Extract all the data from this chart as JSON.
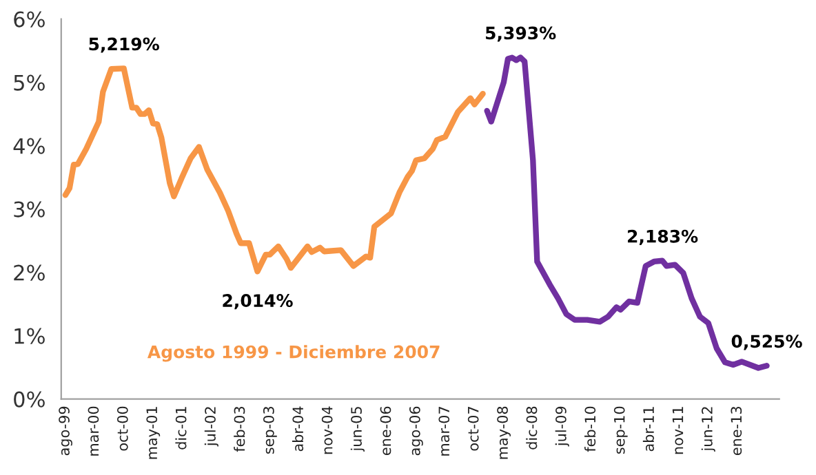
{
  "chart_data": {
    "type": "line",
    "xlim": [
      "1999-07",
      "2013-11"
    ],
    "ylim": [
      0,
      6
    ],
    "yticks": [
      {
        "value": 0,
        "label": "0%"
      },
      {
        "value": 1,
        "label": "1%"
      },
      {
        "value": 2,
        "label": "2%"
      },
      {
        "value": 3,
        "label": "3%"
      },
      {
        "value": 4,
        "label": "4%"
      },
      {
        "value": 5,
        "label": "5%"
      },
      {
        "value": 6,
        "label": "6%"
      }
    ],
    "xticks": [
      {
        "value": "1999-08",
        "label": "ago-99"
      },
      {
        "value": "2000-03",
        "label": "mar-00"
      },
      {
        "value": "2000-10",
        "label": "oct-00"
      },
      {
        "value": "2001-05",
        "label": "may-01"
      },
      {
        "value": "2001-12",
        "label": "dic-01"
      },
      {
        "value": "2002-07",
        "label": "jul-02"
      },
      {
        "value": "2003-02",
        "label": "feb-03"
      },
      {
        "value": "2003-09",
        "label": "sep-03"
      },
      {
        "value": "2004-04",
        "label": "abr-04"
      },
      {
        "value": "2004-11",
        "label": "nov-04"
      },
      {
        "value": "2005-06",
        "label": "jun-05"
      },
      {
        "value": "2006-01",
        "label": "ene-06"
      },
      {
        "value": "2006-08",
        "label": "ago-06"
      },
      {
        "value": "2007-03",
        "label": "mar-07"
      },
      {
        "value": "2007-10",
        "label": "oct-07"
      },
      {
        "value": "2008-05",
        "label": "may-08"
      },
      {
        "value": "2008-12",
        "label": "dic-08"
      },
      {
        "value": "2009-07",
        "label": "jul-09"
      },
      {
        "value": "2010-02",
        "label": "feb-10"
      },
      {
        "value": "2010-09",
        "label": "sep-10"
      },
      {
        "value": "2011-04",
        "label": "abr-11"
      },
      {
        "value": "2011-11",
        "label": "nov-11"
      },
      {
        "value": "2012-06",
        "label": "jun-12"
      },
      {
        "value": "2013-01",
        "label": "ene-13"
      }
    ],
    "grid": false,
    "legend": false,
    "marker": "none",
    "line_style": "solid",
    "series": [
      {
        "name": "Agosto 1999 - Diciembre 2007",
        "color": "#f79646",
        "x": [
          "1999-08",
          "1999-09",
          "1999-10",
          "1999-11",
          "2000-01",
          "2000-04",
          "2000-05",
          "2000-07",
          "2000-10",
          "2000-12",
          "2001-01",
          "2001-02",
          "2001-03",
          "2001-04",
          "2001-05",
          "2001-06",
          "2001-07",
          "2001-09",
          "2001-10",
          "2001-12",
          "2002-02",
          "2002-04",
          "2002-06",
          "2002-09",
          "2002-11",
          "2003-01",
          "2003-02",
          "2003-04",
          "2003-06",
          "2003-08",
          "2003-09",
          "2003-11",
          "2004-01",
          "2004-02",
          "2004-06",
          "2004-07",
          "2004-09",
          "2004-10",
          "2005-02",
          "2005-05",
          "2005-08",
          "2005-09",
          "2005-10",
          "2006-02",
          "2006-04",
          "2006-06",
          "2006-07",
          "2006-08",
          "2006-10",
          "2006-12",
          "2007-01",
          "2007-03",
          "2007-06",
          "2007-09",
          "2007-10",
          "2007-12"
        ],
        "values": [
          3.22,
          3.33,
          3.7,
          3.71,
          3.95,
          4.38,
          4.85,
          5.21,
          5.219,
          4.6,
          4.6,
          4.5,
          4.5,
          4.56,
          4.35,
          4.34,
          4.13,
          3.41,
          3.2,
          3.51,
          3.8,
          3.98,
          3.62,
          3.26,
          2.97,
          2.61,
          2.46,
          2.46,
          2.014,
          2.28,
          2.28,
          2.41,
          2.21,
          2.07,
          2.41,
          2.32,
          2.39,
          2.33,
          2.35,
          2.1,
          2.25,
          2.23,
          2.72,
          2.93,
          3.26,
          3.51,
          3.6,
          3.77,
          3.8,
          3.95,
          4.09,
          4.14,
          4.53,
          4.75,
          4.65,
          4.82
        ]
      },
      {
        "color": "#7030a0",
        "x": [
          "2008-01",
          "2008-02",
          "2008-05",
          "2008-06",
          "2008-07",
          "2008-08",
          "2008-09",
          "2008-10",
          "2008-12",
          "2009-01",
          "2009-04",
          "2009-06",
          "2009-08",
          "2009-10",
          "2010-01",
          "2010-04",
          "2010-06",
          "2010-08",
          "2010-09",
          "2010-11",
          "2011-01",
          "2011-03",
          "2011-05",
          "2011-07",
          "2011-08",
          "2011-10",
          "2011-12",
          "2012-02",
          "2012-04",
          "2012-06",
          "2012-08",
          "2012-10",
          "2012-12",
          "2013-02",
          "2013-06",
          "2013-08"
        ],
        "values": [
          4.55,
          4.38,
          5.0,
          5.37,
          5.39,
          5.35,
          5.393,
          5.33,
          3.77,
          2.17,
          1.81,
          1.59,
          1.34,
          1.25,
          1.25,
          1.22,
          1.3,
          1.45,
          1.41,
          1.54,
          1.52,
          2.1,
          2.17,
          2.183,
          2.1,
          2.12,
          1.99,
          1.59,
          1.3,
          1.2,
          0.8,
          0.58,
          0.54,
          0.59,
          0.49,
          0.525
        ]
      }
    ],
    "annotations": [
      {
        "text": "5,219%",
        "x": "2000-10",
        "y": 5.219
      },
      {
        "text": "2,014%",
        "x": "2003-06",
        "y": 2.014
      },
      {
        "text": "5,393%",
        "x": "2008-09",
        "y": 5.393
      },
      {
        "text": "2,183%",
        "x": "2011-07",
        "y": 2.183
      },
      {
        "text": "0,525%",
        "x": "2013-08",
        "y": 0.525
      }
    ]
  }
}
